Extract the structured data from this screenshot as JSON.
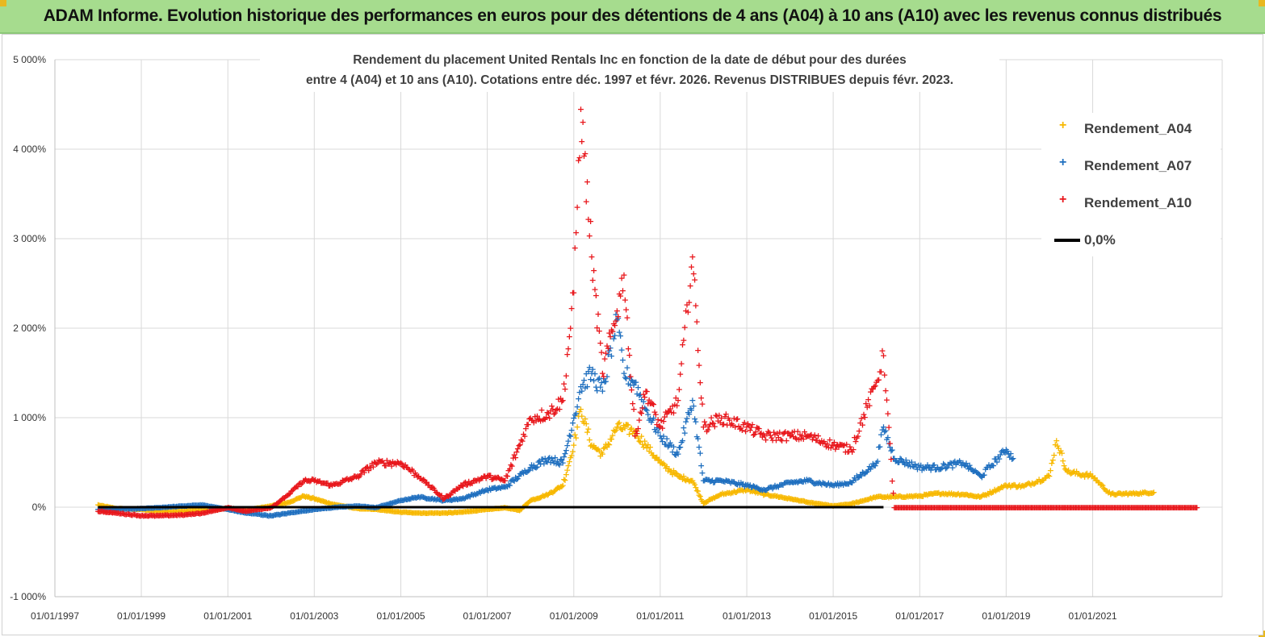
{
  "banner": {
    "title": "ADAM Informe. Evolution historique des performances en euros pour des détentions de 4 ans (A04) à 10 ans (A10) avec les revenus connus distribués",
    "bg_color": "#a6dc8e",
    "corner_color": "#e8b820"
  },
  "chart_data": {
    "type": "scatter",
    "title_line1": "Rendement du placement United Rentals Inc en fonction de la date de début pour des durées",
    "title_line2": "entre 4 (A04) et 10 ans (A10). Cotations entre déc. 1997 et févr. 2026. Revenus DISTRIBUES depuis févr. 2023.",
    "xlabel": "",
    "ylabel": "",
    "ylim": [
      -1000,
      5000
    ],
    "xlim": [
      "1997-01-01",
      "2023-12-31"
    ],
    "y_ticks": [
      "-1 000%",
      "0%",
      "1 000%",
      "2 000%",
      "3 000%",
      "4 000%",
      "5 000%"
    ],
    "x_ticks": [
      "01/01/1997",
      "01/01/1999",
      "01/01/2001",
      "01/01/2003",
      "01/01/2005",
      "01/01/2007",
      "01/01/2009",
      "01/01/2011",
      "01/01/2013",
      "01/01/2015",
      "01/01/2017",
      "01/01/2019",
      "01/01/2021"
    ],
    "grid": true,
    "legend_position": "right",
    "series": [
      {
        "name": "Rendement_A04",
        "color": "#f7b800",
        "points": [
          [
            "1998-01-01",
            30
          ],
          [
            "1998-06-01",
            -10
          ],
          [
            "1999-01-01",
            -20
          ],
          [
            "1999-06-01",
            -40
          ],
          [
            "2000-01-01",
            -40
          ],
          [
            "2000-06-01",
            -30
          ],
          [
            "2001-01-01",
            -10
          ],
          [
            "2001-06-01",
            -30
          ],
          [
            "2002-01-01",
            20
          ],
          [
            "2002-06-01",
            60
          ],
          [
            "2002-10-01",
            130
          ],
          [
            "2003-01-01",
            100
          ],
          [
            "2003-06-01",
            40
          ],
          [
            "2004-01-01",
            -10
          ],
          [
            "2004-06-01",
            -20
          ],
          [
            "2005-01-01",
            -50
          ],
          [
            "2005-06-01",
            -60
          ],
          [
            "2006-01-01",
            -60
          ],
          [
            "2006-06-01",
            -50
          ],
          [
            "2007-01-01",
            -20
          ],
          [
            "2007-06-01",
            0
          ],
          [
            "2007-10-01",
            -30
          ],
          [
            "2008-01-01",
            80
          ],
          [
            "2008-06-01",
            150
          ],
          [
            "2008-10-01",
            250
          ],
          [
            "2009-01-01",
            700
          ],
          [
            "2009-03-01",
            1100
          ],
          [
            "2009-06-01",
            700
          ],
          [
            "2009-09-01",
            600
          ],
          [
            "2010-01-01",
            900
          ],
          [
            "2010-06-01",
            850
          ],
          [
            "2010-09-01",
            700
          ],
          [
            "2011-01-01",
            500
          ],
          [
            "2011-06-01",
            350
          ],
          [
            "2011-10-01",
            300
          ],
          [
            "2012-01-01",
            50
          ],
          [
            "2012-06-01",
            150
          ],
          [
            "2013-01-01",
            200
          ],
          [
            "2013-06-01",
            150
          ],
          [
            "2014-01-01",
            100
          ],
          [
            "2014-06-01",
            60
          ],
          [
            "2015-01-01",
            20
          ],
          [
            "2015-06-01",
            40
          ],
          [
            "2016-01-01",
            120
          ],
          [
            "2016-06-01",
            120
          ],
          [
            "2017-01-01",
            130
          ],
          [
            "2017-06-01",
            160
          ],
          [
            "2018-01-01",
            150
          ],
          [
            "2018-06-01",
            120
          ],
          [
            "2019-01-01",
            250
          ],
          [
            "2019-06-01",
            240
          ],
          [
            "2020-01-01",
            350
          ],
          [
            "2020-03-01",
            750
          ],
          [
            "2020-06-01",
            400
          ],
          [
            "2021-01-01",
            350
          ],
          [
            "2021-06-01",
            150
          ],
          [
            "2022-01-01",
            160
          ],
          [
            "2022-06-01",
            170
          ]
        ]
      },
      {
        "name": "Rendement_A07",
        "color": "#1f6fbf",
        "points": [
          [
            "1998-01-01",
            -20
          ],
          [
            "1998-06-01",
            -20
          ],
          [
            "1999-01-01",
            -10
          ],
          [
            "1999-06-01",
            0
          ],
          [
            "2000-01-01",
            20
          ],
          [
            "2000-06-01",
            30
          ],
          [
            "2001-01-01",
            -20
          ],
          [
            "2001-06-01",
            -60
          ],
          [
            "2002-01-01",
            -90
          ],
          [
            "2002-06-01",
            -60
          ],
          [
            "2003-01-01",
            -20
          ],
          [
            "2003-06-01",
            0
          ],
          [
            "2004-01-01",
            20
          ],
          [
            "2004-06-01",
            0
          ],
          [
            "2005-01-01",
            80
          ],
          [
            "2005-06-01",
            120
          ],
          [
            "2006-01-01",
            80
          ],
          [
            "2006-06-01",
            100
          ],
          [
            "2007-01-01",
            200
          ],
          [
            "2007-06-01",
            230
          ],
          [
            "2008-01-01",
            450
          ],
          [
            "2008-06-01",
            550
          ],
          [
            "2008-10-01",
            500
          ],
          [
            "2009-01-01",
            1000
          ],
          [
            "2009-03-01",
            1350
          ],
          [
            "2009-06-01",
            1500
          ],
          [
            "2009-09-01",
            1300
          ],
          [
            "2010-01-01",
            2100
          ],
          [
            "2010-03-01",
            1500
          ],
          [
            "2010-06-01",
            1400
          ],
          [
            "2010-09-01",
            1100
          ],
          [
            "2011-01-01",
            800
          ],
          [
            "2011-06-01",
            600
          ],
          [
            "2011-10-01",
            1200
          ],
          [
            "2012-01-01",
            300
          ],
          [
            "2012-06-01",
            300
          ],
          [
            "2013-01-01",
            250
          ],
          [
            "2013-06-01",
            200
          ],
          [
            "2014-01-01",
            280
          ],
          [
            "2014-06-01",
            300
          ],
          [
            "2015-01-01",
            250
          ],
          [
            "2015-06-01",
            280
          ],
          [
            "2016-01-01",
            500
          ],
          [
            "2016-03-01",
            900
          ],
          [
            "2016-06-01",
            550
          ],
          [
            "2017-01-01",
            450
          ],
          [
            "2017-06-01",
            450
          ],
          [
            "2018-01-01",
            500
          ],
          [
            "2018-06-01",
            350
          ],
          [
            "2019-01-01",
            650
          ],
          [
            "2019-03-01",
            550
          ]
        ]
      },
      {
        "name": "Rendement_A10",
        "color": "#e8161b",
        "points": [
          [
            "1998-01-01",
            -40
          ],
          [
            "1998-06-01",
            -60
          ],
          [
            "1999-01-01",
            -90
          ],
          [
            "1999-06-01",
            -90
          ],
          [
            "2000-01-01",
            -80
          ],
          [
            "2000-06-01",
            -60
          ],
          [
            "2001-01-01",
            0
          ],
          [
            "2001-06-01",
            -40
          ],
          [
            "2002-01-01",
            0
          ],
          [
            "2002-06-01",
            150
          ],
          [
            "2002-10-01",
            300
          ],
          [
            "2003-01-01",
            300
          ],
          [
            "2003-06-01",
            250
          ],
          [
            "2004-01-01",
            350
          ],
          [
            "2004-06-01",
            500
          ],
          [
            "2005-01-01",
            500
          ],
          [
            "2005-06-01",
            350
          ],
          [
            "2006-01-01",
            100
          ],
          [
            "2006-06-01",
            250
          ],
          [
            "2007-01-01",
            350
          ],
          [
            "2007-06-01",
            300
          ],
          [
            "2008-01-01",
            1000
          ],
          [
            "2008-06-01",
            1050
          ],
          [
            "2008-10-01",
            1200
          ],
          [
            "2009-01-01",
            2400
          ],
          [
            "2009-03-01",
            4450
          ],
          [
            "2009-06-01",
            2800
          ],
          [
            "2009-09-01",
            1500
          ],
          [
            "2010-01-01",
            2200
          ],
          [
            "2010-03-01",
            2600
          ],
          [
            "2010-06-01",
            800
          ],
          [
            "2010-09-01",
            1300
          ],
          [
            "2011-01-01",
            900
          ],
          [
            "2011-06-01",
            1200
          ],
          [
            "2011-10-01",
            2800
          ],
          [
            "2012-01-01",
            900
          ],
          [
            "2012-06-01",
            1000
          ],
          [
            "2013-01-01",
            900
          ],
          [
            "2013-06-01",
            800
          ],
          [
            "2014-01-01",
            800
          ],
          [
            "2014-06-01",
            800
          ],
          [
            "2015-01-01",
            700
          ],
          [
            "2015-06-01",
            650
          ],
          [
            "2016-01-01",
            1400
          ],
          [
            "2016-03-01",
            1700
          ],
          [
            "2016-06-01",
            0
          ],
          [
            "2017-01-01",
            0
          ],
          [
            "2018-01-01",
            0
          ],
          [
            "2019-01-01",
            0
          ],
          [
            "2020-01-01",
            0
          ],
          [
            "2021-01-01",
            0
          ],
          [
            "2022-01-01",
            0
          ],
          [
            "2023-06-01",
            0
          ]
        ]
      },
      {
        "name": "0,0%",
        "color": "#000000",
        "style": "line",
        "points": [
          [
            "1998-01-01",
            0
          ],
          [
            "2016-03-01",
            0
          ]
        ]
      }
    ]
  }
}
